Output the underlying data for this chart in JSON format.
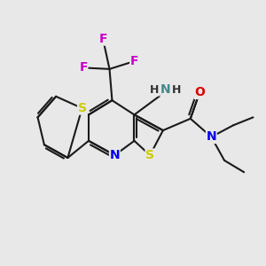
{
  "background_color": "#e8e8e8",
  "bond_color": "#1a1a1a",
  "bond_width": 1.5,
  "atom_colors": {
    "S": "#cccc00",
    "N": "#0000ee",
    "O": "#dd0000",
    "F": "#cc00cc",
    "N_amine": "#448888",
    "H_amine": "#448888"
  },
  "font_size": 9
}
